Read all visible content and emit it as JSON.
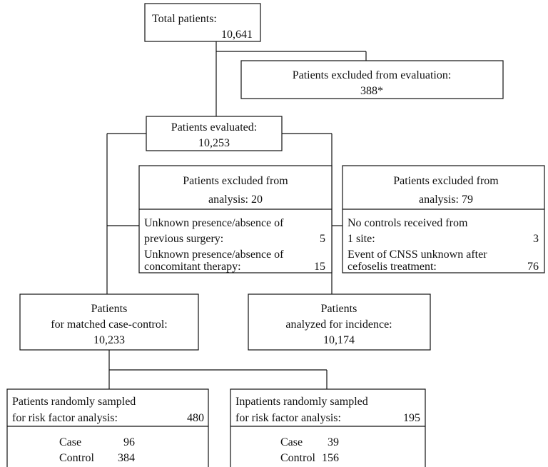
{
  "total": {
    "label": "Total patients:",
    "count": "10,641"
  },
  "excluded_evaluation": {
    "label": "Patients excluded from evaluation:",
    "count": "388*"
  },
  "evaluated": {
    "label": "Patients evaluated:",
    "count": "10,253"
  },
  "excluded_analysis_left": {
    "title": [
      "Patients excluded from",
      "analysis: 20"
    ],
    "items": [
      {
        "lines": [
          "Unknown presence/absence of",
          "previous surgery:"
        ],
        "count": "5"
      },
      {
        "lines": [
          "Unknown presence/absence of",
          "concomitant therapy:"
        ],
        "count": "15"
      }
    ]
  },
  "excluded_analysis_right": {
    "title": [
      "Patients excluded from",
      "analysis: 79"
    ],
    "items": [
      {
        "lines": [
          "No controls received from",
          "1 site:"
        ],
        "count": "3"
      },
      {
        "lines": [
          "Event of CNSS unknown after",
          "cefoselis treatment:"
        ],
        "count": "76"
      }
    ]
  },
  "matched": {
    "lines": [
      "Patients",
      "for matched case-control:",
      "10,233"
    ]
  },
  "incidence": {
    "lines": [
      "Patients",
      "analyzed for incidence:",
      "10,174"
    ]
  },
  "sampled_left": {
    "title": [
      "Patients randomly sampled",
      "for risk factor analysis:"
    ],
    "count": "480",
    "rows": [
      {
        "label": "Case",
        "count": "96"
      },
      {
        "label": "Control",
        "count": "384"
      }
    ]
  },
  "sampled_right": {
    "title": [
      "Inpatients randomly sampled",
      "for risk factor analysis:"
    ],
    "count": "195",
    "rows": [
      {
        "label": "Case",
        "count": "39"
      },
      {
        "label": "Control",
        "count": "156"
      }
    ]
  }
}
